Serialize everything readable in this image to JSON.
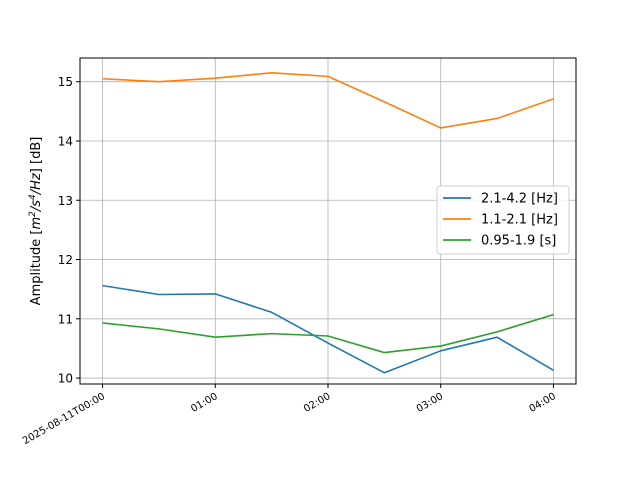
{
  "chart_data": {
    "type": "line",
    "title": "",
    "xlabel": "",
    "ylabel_parts": [
      "Amplitude [",
      "m",
      "2",
      "/",
      "s",
      "4",
      "/",
      "Hz",
      "] [dB]"
    ],
    "x": [
      "2025-08-11T00:00",
      "2025-08-11T00:30",
      "2025-08-11T01:00",
      "2025-08-11T01:30",
      "2025-08-11T02:00",
      "2025-08-11T02:30",
      "2025-08-11T03:00",
      "2025-08-11T03:30",
      "2025-08-11T04:00"
    ],
    "x_tick_labels": [
      "2025-08-11T00:00",
      "01:00",
      "02:00",
      "03:00",
      "04:00"
    ],
    "x_tick_hours": [
      0,
      1,
      2,
      3,
      4
    ],
    "xlim_hours": [
      -0.2,
      4.2
    ],
    "ylim": [
      9.9,
      15.4
    ],
    "y_ticks": [
      10,
      11,
      12,
      13,
      14,
      15
    ],
    "grid": true,
    "legend_position": "center-right",
    "series": [
      {
        "name": "2.1-4.2 [Hz]",
        "color": "#1f77b4",
        "values": [
          11.56,
          11.41,
          11.42,
          11.11,
          10.59,
          10.09,
          10.46,
          10.69,
          10.13
        ]
      },
      {
        "name": "1.1-2.1 [Hz]",
        "color": "#ff7f0e",
        "values": [
          15.05,
          15.0,
          15.06,
          15.15,
          15.09,
          14.66,
          14.22,
          14.38,
          14.71
        ]
      },
      {
        "name": "0.95-1.9 [s]",
        "color": "#2ca02c",
        "values": [
          10.93,
          10.83,
          10.69,
          10.75,
          10.71,
          10.43,
          10.54,
          10.78,
          11.07
        ]
      }
    ]
  }
}
